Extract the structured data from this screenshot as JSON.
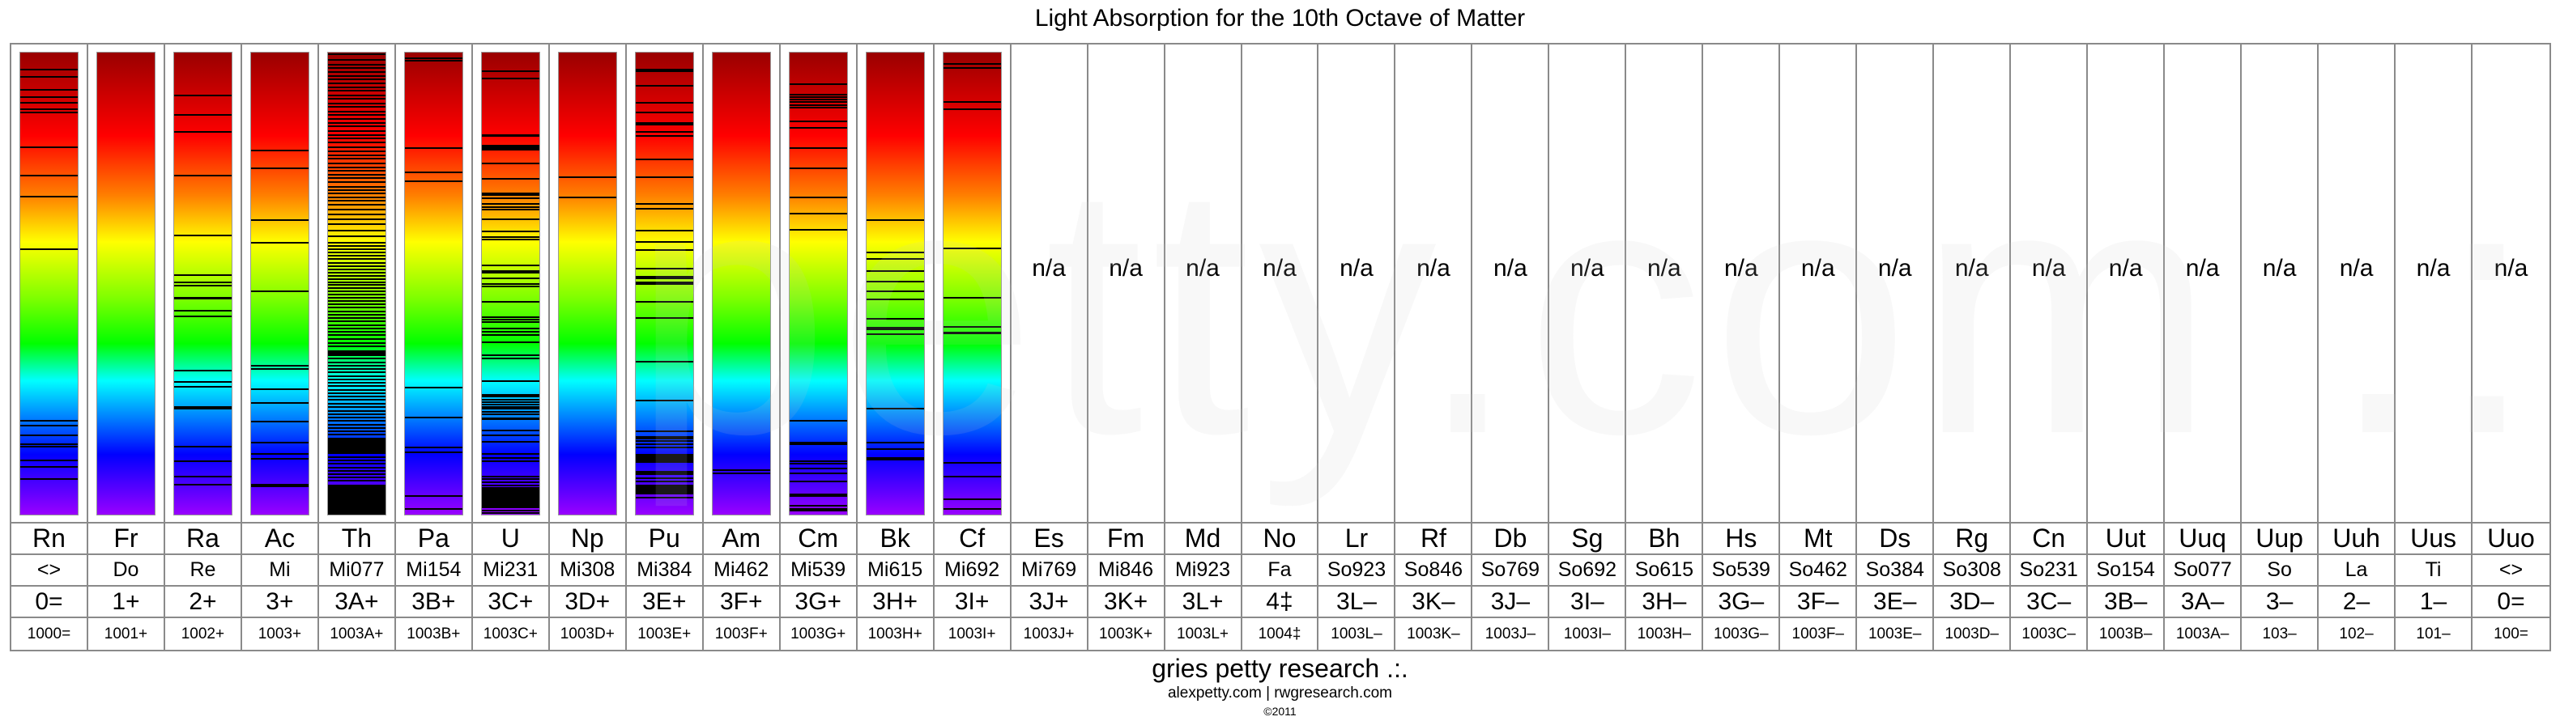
{
  "chart_data": {
    "type": "table",
    "title": "Light Absorption for the 10th Octave of Matter",
    "spectrum_colors": [
      "#990000",
      "#ff0000",
      "#ff8000",
      "#ffff00",
      "#00ff00",
      "#00ffff",
      "#0000ff",
      "#9900ff"
    ],
    "line_color": "#000000",
    "elements": [
      {
        "symbol": "Rn",
        "note": "<>",
        "charge": "0=",
        "code": "1000=",
        "lines": [
          0.036,
          0.053,
          0.081,
          0.097,
          0.109,
          0.123,
          0.13,
          0.205,
          0.266,
          0.311,
          0.425,
          0.796,
          0.807,
          0.829,
          0.847,
          0.853,
          0.883,
          0.896,
          0.923
        ],
        "bands": []
      },
      {
        "symbol": "Fr",
        "note": "Do",
        "charge": "1+",
        "code": "1001+",
        "lines": [],
        "bands": []
      },
      {
        "symbol": "Ra",
        "note": "Re",
        "charge": "2+",
        "code": "1002+",
        "lines": [
          0.093,
          0.135,
          0.171,
          0.266,
          0.395,
          0.481,
          0.498,
          0.505,
          0.53,
          0.532,
          0.559,
          0.571,
          0.689,
          0.713,
          0.723,
          0.767,
          0.77,
          0.853,
          0.884,
          0.918,
          0.935
        ],
        "bands": []
      },
      {
        "symbol": "Ac",
        "note": "Mi",
        "charge": "3+",
        "code": "1003+",
        "lines": [
          0.212,
          0.251,
          0.363,
          0.412,
          0.516,
          0.678,
          0.684,
          0.729,
          0.759,
          0.798,
          0.845,
          0.868,
          0.879,
          0.935,
          0.939
        ],
        "bands": []
      },
      {
        "symbol": "Th",
        "note": "Mi077",
        "charge": "3A+",
        "code": "1003A+",
        "lines": [
          0.003,
          0.016,
          0.027,
          0.033,
          0.042,
          0.05,
          0.058,
          0.067,
          0.075,
          0.083,
          0.092,
          0.1,
          0.11,
          0.118,
          0.128,
          0.135,
          0.143,
          0.152,
          0.16,
          0.17,
          0.178,
          0.186,
          0.195,
          0.205,
          0.213,
          0.222,
          0.23,
          0.24,
          0.248,
          0.256,
          0.265,
          0.272,
          0.28,
          0.29,
          0.298,
          0.305,
          0.313,
          0.32,
          0.33,
          0.34,
          0.35,
          0.36,
          0.372,
          0.385,
          0.398,
          0.412,
          0.418,
          0.425,
          0.432,
          0.44,
          0.447,
          0.455,
          0.462,
          0.47,
          0.476,
          0.483,
          0.49,
          0.497,
          0.503,
          0.51,
          0.517,
          0.523,
          0.53,
          0.537,
          0.545,
          0.552,
          0.56,
          0.567,
          0.575,
          0.582,
          0.59,
          0.597,
          0.605,
          0.612,
          0.62,
          0.628,
          0.635,
          0.662,
          0.67,
          0.677,
          0.685,
          0.692,
          0.7,
          0.708,
          0.715,
          0.722,
          0.73,
          0.737,
          0.745,
          0.752,
          0.76,
          0.767,
          0.775,
          0.782,
          0.79,
          0.797,
          0.805,
          0.812,
          0.82,
          0.827,
          0.875,
          0.883,
          0.89,
          0.898,
          0.905,
          0.912,
          0.92,
          0.927
        ],
        "bands": [
          [
            0.645,
            0.657
          ],
          [
            0.833,
            0.868
          ],
          [
            0.935,
            1.0
          ]
        ]
      },
      {
        "symbol": "Pa",
        "note": "Mi154",
        "charge": "3B+",
        "code": "1003B+",
        "lines": [
          0.013,
          0.018,
          0.206,
          0.26,
          0.279,
          0.725,
          0.789,
          0.854,
          0.865,
          0.959,
          0.988
        ],
        "bands": []
      },
      {
        "symbol": "U",
        "note": "Mi231",
        "charge": "3C+",
        "code": "1003C+",
        "lines": [
          0.04,
          0.056,
          0.178,
          0.181,
          0.201,
          0.205,
          0.208,
          0.211,
          0.24,
          0.274,
          0.305,
          0.308,
          0.315,
          0.328,
          0.335,
          0.34,
          0.361,
          0.387,
          0.399,
          0.405,
          0.46,
          0.472,
          0.477,
          0.489,
          0.501,
          0.506,
          0.539,
          0.573,
          0.578,
          0.583,
          0.598,
          0.604,
          0.611,
          0.627,
          0.655,
          0.662,
          0.711,
          0.74,
          0.745,
          0.751,
          0.756,
          0.761,
          0.767,
          0.771,
          0.778,
          0.783,
          0.818,
          0.828,
          0.842,
          0.868,
          0.878,
          0.885,
          0.917,
          0.923,
          0.93,
          0.937,
          0.991,
          0.996
        ],
        "bands": [
          [
            0.789,
            0.795
          ],
          [
            0.941,
            0.986
          ]
        ]
      },
      {
        "symbol": "Np",
        "note": "Mi308",
        "charge": "3D+",
        "code": "1003D+",
        "lines": [
          0.269,
          0.314
        ],
        "bands": []
      },
      {
        "symbol": "Pu",
        "note": "Mi384",
        "charge": "3E+",
        "code": "1003E+",
        "lines": [
          0.038,
          0.071,
          0.108,
          0.129,
          0.171,
          0.181,
          0.231,
          0.269,
          0.328,
          0.338,
          0.385,
          0.41,
          0.427,
          0.468,
          0.539,
          0.575,
          0.669,
          0.753,
          0.819,
          0.841,
          0.848,
          0.855,
          0.921,
          0.928,
          0.963
        ],
        "bands": [
          [
            0.035,
            0.042
          ],
          [
            0.15,
            0.158
          ],
          [
            0.483,
            0.49
          ],
          [
            0.496,
            0.503
          ],
          [
            0.83,
            0.837
          ],
          [
            0.868,
            0.888
          ],
          [
            0.905,
            0.915
          ],
          [
            0.935,
            0.957
          ]
        ]
      },
      {
        "symbol": "Am",
        "note": "Mi462",
        "charge": "3F+",
        "code": "1003F+",
        "lines": [
          0.903,
          0.91
        ],
        "bands": []
      },
      {
        "symbol": "Cm",
        "note": "Mi539",
        "charge": "3G+",
        "code": "1003G+",
        "lines": [
          0.069,
          0.091,
          0.096,
          0.101,
          0.107,
          0.113,
          0.119,
          0.149,
          0.163,
          0.207,
          0.251,
          0.313,
          0.348,
          0.384,
          0.797,
          0.884,
          0.889,
          0.901,
          0.91,
          0.928,
          0.956,
          0.96,
          0.981,
          0.987,
          0.992
        ],
        "bands": [
          [
            0.843,
            0.85
          ]
        ]
      },
      {
        "symbol": "Bk",
        "note": "Mi615",
        "charge": "3H+",
        "code": "1003H+",
        "lines": [
          0.363,
          0.432,
          0.447,
          0.473,
          0.495,
          0.516,
          0.535,
          0.576,
          0.595,
          0.599,
          0.609,
          0.771,
          0.844,
          0.858
        ],
        "bands": [
          [
            0.876,
            0.883
          ]
        ]
      },
      {
        "symbol": "Cf",
        "note": "Mi692",
        "charge": "3I+",
        "code": "1003I+",
        "lines": [
          0.025,
          0.034,
          0.107,
          0.123,
          0.424,
          0.53,
          0.593,
          0.888,
          0.918,
          0.966,
          0.987
        ],
        "bands": [
          [
            0.604,
            0.61
          ]
        ]
      },
      {
        "symbol": "Es",
        "note": "Mi769",
        "charge": "3J+",
        "code": "1003J+",
        "na": "n/a"
      },
      {
        "symbol": "Fm",
        "note": "Mi846",
        "charge": "3K+",
        "code": "1003K+",
        "na": "n/a"
      },
      {
        "symbol": "Md",
        "note": "Mi923",
        "charge": "3L+",
        "code": "1003L+",
        "na": "n/a"
      },
      {
        "symbol": "No",
        "note": "Fa",
        "charge": "4‡",
        "code": "1004‡",
        "na": "n/a"
      },
      {
        "symbol": "Lr",
        "note": "So923",
        "charge": "3L–",
        "code": "1003L–",
        "na": "n/a"
      },
      {
        "symbol": "Rf",
        "note": "So846",
        "charge": "3K–",
        "code": "1003K–",
        "na": "n/a"
      },
      {
        "symbol": "Db",
        "note": "So769",
        "charge": "3J–",
        "code": "1003J–",
        "na": "n/a"
      },
      {
        "symbol": "Sg",
        "note": "So692",
        "charge": "3I–",
        "code": "1003I–",
        "na": "n/a"
      },
      {
        "symbol": "Bh",
        "note": "So615",
        "charge": "3H–",
        "code": "1003H–",
        "na": "n/a"
      },
      {
        "symbol": "Hs",
        "note": "So539",
        "charge": "3G–",
        "code": "1003G–",
        "na": "n/a"
      },
      {
        "symbol": "Mt",
        "note": "So462",
        "charge": "3F–",
        "code": "1003F–",
        "na": "n/a"
      },
      {
        "symbol": "Ds",
        "note": "So384",
        "charge": "3E–",
        "code": "1003E–",
        "na": "n/a"
      },
      {
        "symbol": "Rg",
        "note": "So308",
        "charge": "3D–",
        "code": "1003D–",
        "na": "n/a"
      },
      {
        "symbol": "Cn",
        "note": "So231",
        "charge": "3C–",
        "code": "1003C–",
        "na": "n/a"
      },
      {
        "symbol": "Uut",
        "note": "So154",
        "charge": "3B–",
        "code": "1003B–",
        "na": "n/a"
      },
      {
        "symbol": "Uuq",
        "note": "So077",
        "charge": "3A–",
        "code": "1003A–",
        "na": "n/a"
      },
      {
        "symbol": "Uup",
        "note": "So",
        "charge": "3–",
        "code": "103–",
        "na": "n/a"
      },
      {
        "symbol": "Uuh",
        "note": "La",
        "charge": "2–",
        "code": "102–",
        "na": "n/a"
      },
      {
        "symbol": "Uus",
        "note": "Ti",
        "charge": "1–",
        "code": "101–",
        "na": "n/a"
      },
      {
        "symbol": "Uuo",
        "note": "<>",
        "charge": "0=",
        "code": "100=",
        "na": "n/a"
      }
    ]
  },
  "watermark": "petty.com .:",
  "footer": {
    "brand": "gries petty research .:.",
    "links": "alexpetty.com | rwgresearch.com",
    "copyright": "©2011"
  }
}
